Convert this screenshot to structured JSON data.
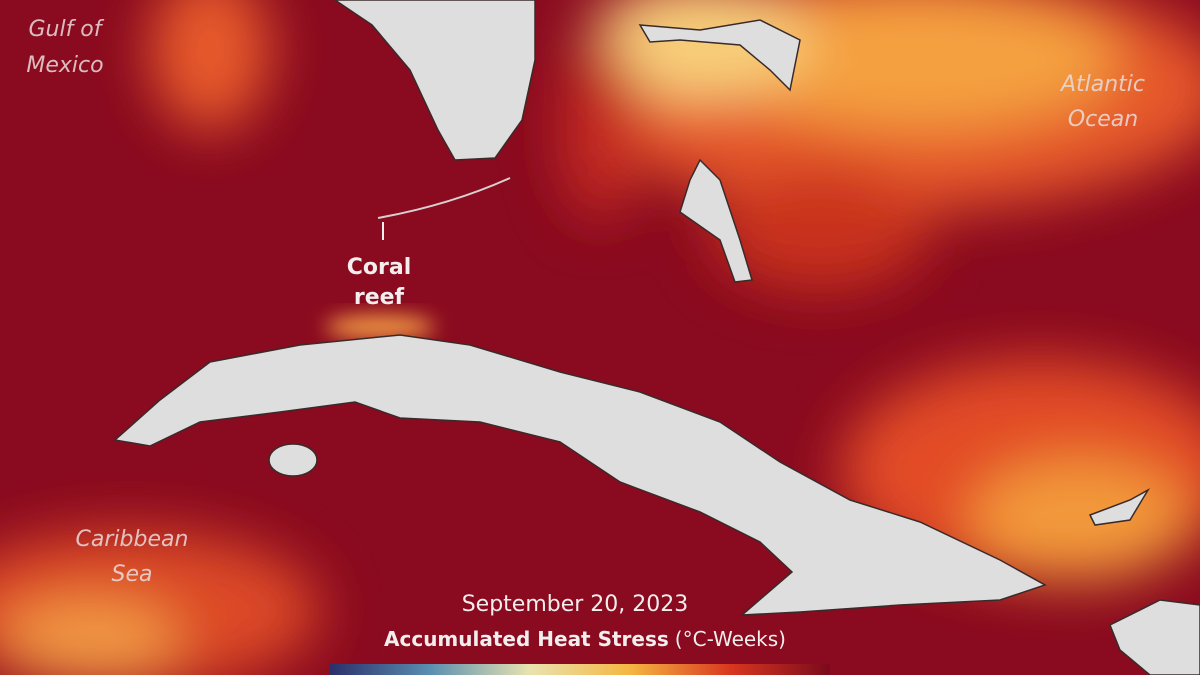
{
  "map": {
    "water_labels": [
      {
        "lines": [
          "Gulf of",
          "Mexico"
        ]
      },
      {
        "lines": [
          "Atlantic",
          "Ocean"
        ]
      },
      {
        "lines": [
          "Caribbean",
          "Sea"
        ]
      }
    ],
    "annotation": {
      "lines": [
        "Coral",
        "reef"
      ]
    },
    "date": "September 20, 2023",
    "legend": {
      "title": "Accumulated Heat Stress",
      "unit": "(°C-Weeks)"
    }
  }
}
